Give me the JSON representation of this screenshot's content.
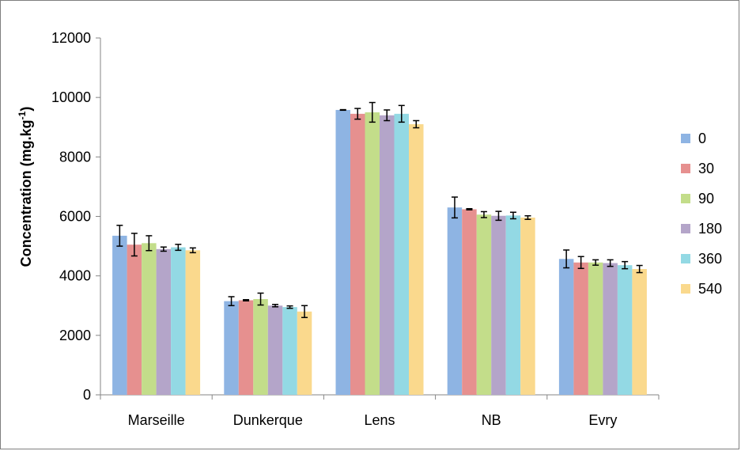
{
  "chart_data": {
    "type": "bar",
    "title": "",
    "xlabel": "",
    "ylabel": "Concentration (mg.kg",
    "ylabel_sup": "-1",
    "ylabel_suffix": ")",
    "ylim": [
      0,
      12000
    ],
    "yticks": [
      0,
      2000,
      4000,
      6000,
      8000,
      10000,
      12000
    ],
    "grid": false,
    "legend_position": "right",
    "categories": [
      "Marseille",
      "Dunkerque",
      "Lens",
      "NB",
      "Evry"
    ],
    "series": [
      {
        "name": "0",
        "color": "#8eb4e3",
        "values": [
          5350,
          3150,
          9580,
          6300,
          4570
        ],
        "errors": [
          350,
          150,
          10,
          350,
          300
        ]
      },
      {
        "name": "30",
        "color": "#e6908f",
        "values": [
          5050,
          3180,
          9450,
          6240,
          4450
        ],
        "errors": [
          380,
          20,
          180,
          20,
          200
        ]
      },
      {
        "name": "90",
        "color": "#c3dd8a",
        "values": [
          5100,
          3220,
          9500,
          6060,
          4450
        ],
        "errors": [
          250,
          200,
          330,
          100,
          90
        ]
      },
      {
        "name": "180",
        "color": "#b4a5c9",
        "values": [
          4900,
          3000,
          9400,
          6020,
          4430
        ],
        "errors": [
          70,
          40,
          180,
          150,
          110
        ]
      },
      {
        "name": "360",
        "color": "#93d9e4",
        "values": [
          4960,
          2950,
          9450,
          6030,
          4360
        ],
        "errors": [
          100,
          40,
          280,
          110,
          120
        ]
      },
      {
        "name": "540",
        "color": "#fad98d",
        "values": [
          4860,
          2800,
          9100,
          5960,
          4230
        ],
        "errors": [
          80,
          200,
          120,
          60,
          120
        ]
      }
    ]
  }
}
